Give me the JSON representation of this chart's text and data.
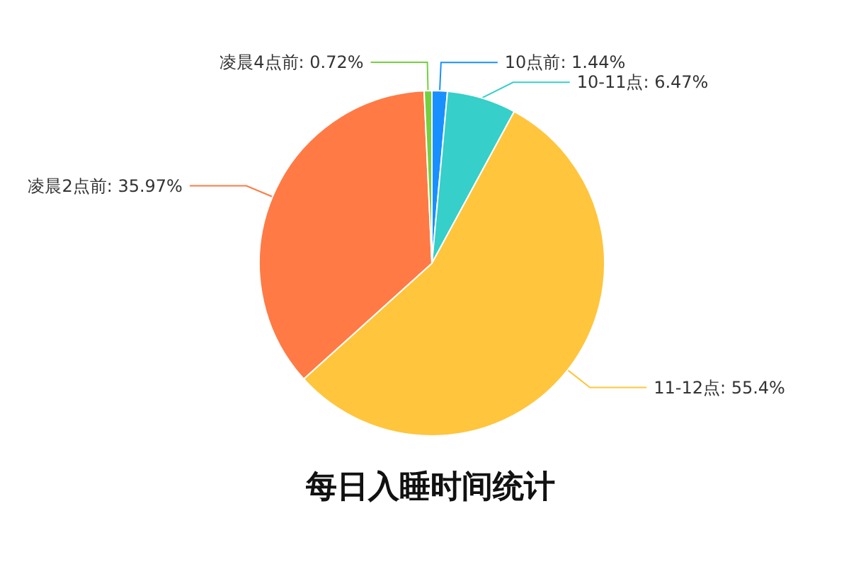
{
  "chart_data": {
    "type": "pie",
    "title": "每日入睡时间统计",
    "categories": [
      "10点前",
      "10-11点",
      "11-12点",
      "凌晨2点前",
      "凌晨4点前"
    ],
    "values": [
      1.44,
      6.47,
      55.4,
      35.97,
      0.72
    ],
    "value_labels": [
      "1.44%",
      "6.47%",
      "55.4%",
      "35.97%",
      "0.72%"
    ],
    "colors": [
      "#1890ff",
      "#36cfc9",
      "#ffc53d",
      "#ff7a45",
      "#73d13d"
    ],
    "legend": false
  }
}
